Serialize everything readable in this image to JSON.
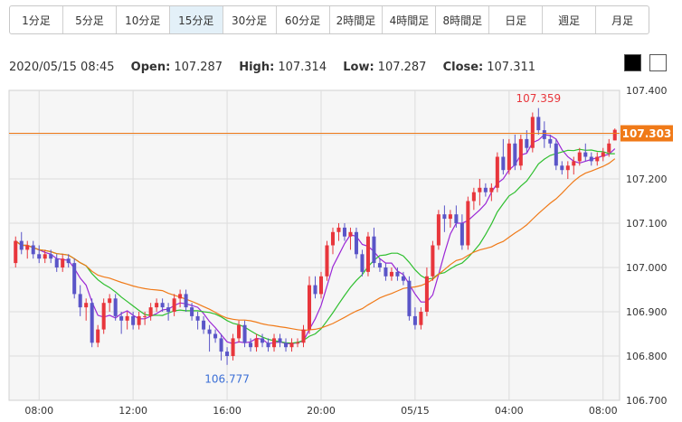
{
  "timeframes": [
    "1分足",
    "5分足",
    "10分足",
    "15分足",
    "30分足",
    "60分足",
    "2時間足",
    "4時間足",
    "8時間足",
    "日足",
    "週足",
    "月足"
  ],
  "active_timeframe": "15分足",
  "ohlc": {
    "datetime": "2020/05/15 08:45",
    "open_label": "Open:",
    "open": "107.287",
    "high_label": "High:",
    "high": "107.314",
    "low_label": "Low:",
    "low": "107.287",
    "close_label": "Close:",
    "close": "107.311"
  },
  "colors": {
    "up": "#e8363c",
    "down": "#5a55c8",
    "ma_short": "#9b27d6",
    "ma_mid": "#2fbf2f",
    "ma_long": "#f07a18",
    "current_price": "#f07a18",
    "high_marker": "#e8363c",
    "low_marker": "#3b6fd6"
  },
  "chart_data": {
    "type": "candlestick",
    "ylim": [
      106.7,
      107.4
    ],
    "y_ticks": [
      "107.400",
      "107.300",
      "107.200",
      "107.100",
      "107.000",
      "106.900",
      "106.800",
      "106.700"
    ],
    "x_ticks": [
      "08:00",
      "12:00",
      "16:00",
      "20:00",
      "05/15",
      "04:00",
      "08:00"
    ],
    "current_price": "107.303",
    "high_marker": "107.359",
    "low_marker": "106.777",
    "grid": true,
    "candles": [
      [
        107.01,
        107.07,
        107.0,
        107.06
      ],
      [
        107.06,
        107.08,
        107.03,
        107.04
      ],
      [
        107.04,
        107.06,
        107.02,
        107.05
      ],
      [
        107.05,
        107.06,
        107.02,
        107.03
      ],
      [
        107.03,
        107.05,
        107.01,
        107.02
      ],
      [
        107.02,
        107.04,
        107.01,
        107.03
      ],
      [
        107.03,
        107.04,
        107.01,
        107.02
      ],
      [
        107.02,
        107.03,
        106.99,
        107.0
      ],
      [
        107.0,
        107.03,
        106.99,
        107.02
      ],
      [
        107.02,
        107.03,
        107.0,
        107.01
      ],
      [
        107.01,
        107.02,
        106.93,
        106.94
      ],
      [
        106.94,
        106.96,
        106.89,
        106.91
      ],
      [
        106.91,
        106.93,
        106.88,
        106.92
      ],
      [
        106.92,
        106.93,
        106.82,
        106.83
      ],
      [
        106.83,
        106.87,
        106.82,
        106.86
      ],
      [
        106.86,
        106.93,
        106.85,
        106.92
      ],
      [
        106.92,
        106.94,
        106.9,
        106.93
      ],
      [
        106.93,
        106.94,
        106.88,
        106.89
      ],
      [
        106.89,
        106.9,
        106.85,
        106.88
      ],
      [
        106.88,
        106.9,
        106.86,
        106.89
      ],
      [
        106.89,
        106.9,
        106.86,
        106.87
      ],
      [
        106.87,
        106.9,
        106.86,
        106.89
      ],
      [
        106.89,
        106.9,
        106.87,
        106.89
      ],
      [
        106.89,
        106.92,
        106.88,
        106.91
      ],
      [
        106.91,
        106.93,
        106.9,
        106.92
      ],
      [
        106.92,
        106.93,
        106.9,
        106.91
      ],
      [
        106.91,
        106.92,
        106.88,
        106.9
      ],
      [
        106.9,
        106.94,
        106.89,
        106.93
      ],
      [
        106.93,
        106.95,
        106.91,
        106.94
      ],
      [
        106.94,
        106.95,
        106.9,
        106.91
      ],
      [
        106.91,
        106.92,
        106.88,
        106.89
      ],
      [
        106.89,
        106.9,
        106.86,
        106.88
      ],
      [
        106.88,
        106.89,
        106.85,
        106.86
      ],
      [
        106.86,
        106.87,
        106.81,
        106.85
      ],
      [
        106.85,
        106.86,
        106.83,
        106.84
      ],
      [
        106.84,
        106.85,
        106.79,
        106.81
      ],
      [
        106.81,
        106.82,
        106.78,
        106.8
      ],
      [
        106.8,
        106.85,
        106.79,
        106.84
      ],
      [
        106.84,
        106.88,
        106.83,
        106.87
      ],
      [
        106.87,
        106.88,
        106.82,
        106.83
      ],
      [
        106.83,
        106.84,
        106.81,
        106.82
      ],
      [
        106.82,
        106.85,
        106.81,
        106.84
      ],
      [
        106.84,
        106.85,
        106.82,
        106.83
      ],
      [
        106.83,
        106.84,
        106.81,
        106.82
      ],
      [
        106.82,
        106.85,
        106.81,
        106.84
      ],
      [
        106.84,
        106.85,
        106.82,
        106.83
      ],
      [
        106.83,
        106.84,
        106.81,
        106.82
      ],
      [
        106.82,
        106.84,
        106.81,
        106.83
      ],
      [
        106.83,
        106.84,
        106.82,
        106.83
      ],
      [
        106.83,
        106.87,
        106.82,
        106.86
      ],
      [
        106.86,
        106.98,
        106.85,
        106.96
      ],
      [
        106.96,
        106.98,
        106.93,
        106.94
      ],
      [
        106.94,
        106.99,
        106.93,
        106.98
      ],
      [
        106.98,
        107.06,
        106.97,
        107.05
      ],
      [
        107.05,
        107.09,
        107.03,
        107.08
      ],
      [
        107.08,
        107.1,
        107.06,
        107.09
      ],
      [
        107.09,
        107.1,
        107.06,
        107.07
      ],
      [
        107.07,
        107.09,
        107.04,
        107.08
      ],
      [
        107.08,
        107.09,
        107.02,
        107.03
      ],
      [
        107.03,
        107.04,
        106.98,
        106.99
      ],
      [
        106.99,
        107.08,
        106.98,
        107.07
      ],
      [
        107.07,
        107.09,
        107.0,
        107.01
      ],
      [
        107.01,
        107.02,
        106.99,
        107.0
      ],
      [
        107.0,
        107.01,
        106.97,
        106.98
      ],
      [
        106.98,
        107.0,
        106.97,
        106.99
      ],
      [
        106.99,
        107.0,
        106.97,
        106.98
      ],
      [
        106.98,
        106.99,
        106.96,
        106.97
      ],
      [
        106.97,
        106.98,
        106.88,
        106.89
      ],
      [
        106.89,
        106.91,
        106.86,
        106.87
      ],
      [
        106.87,
        106.91,
        106.86,
        106.9
      ],
      [
        106.9,
        107.0,
        106.89,
        106.98
      ],
      [
        106.98,
        107.06,
        106.97,
        107.05
      ],
      [
        107.05,
        107.13,
        107.04,
        107.12
      ],
      [
        107.12,
        107.14,
        107.08,
        107.11
      ],
      [
        107.11,
        107.13,
        107.09,
        107.12
      ],
      [
        107.12,
        107.14,
        107.09,
        107.1
      ],
      [
        107.1,
        107.12,
        107.04,
        107.05
      ],
      [
        107.05,
        107.16,
        107.04,
        107.15
      ],
      [
        107.15,
        107.18,
        107.13,
        107.17
      ],
      [
        107.17,
        107.2,
        107.14,
        107.18
      ],
      [
        107.18,
        107.19,
        107.16,
        107.17
      ],
      [
        107.17,
        107.19,
        107.15,
        107.18
      ],
      [
        107.18,
        107.26,
        107.17,
        107.25
      ],
      [
        107.25,
        107.29,
        107.21,
        107.22
      ],
      [
        107.22,
        107.29,
        107.21,
        107.28
      ],
      [
        107.28,
        107.3,
        107.22,
        107.23
      ],
      [
        107.23,
        107.3,
        107.22,
        107.29
      ],
      [
        107.29,
        107.31,
        107.26,
        107.27
      ],
      [
        107.27,
        107.35,
        107.26,
        107.34
      ],
      [
        107.34,
        107.36,
        107.3,
        107.31
      ],
      [
        107.31,
        107.33,
        107.27,
        107.29
      ],
      [
        107.29,
        107.3,
        107.27,
        107.28
      ],
      [
        107.28,
        107.29,
        107.22,
        107.23
      ],
      [
        107.23,
        107.24,
        107.21,
        107.22
      ],
      [
        107.22,
        107.24,
        107.2,
        107.23
      ],
      [
        107.23,
        107.25,
        107.21,
        107.24
      ],
      [
        107.24,
        107.27,
        107.23,
        107.26
      ],
      [
        107.26,
        107.28,
        107.24,
        107.25
      ],
      [
        107.25,
        107.26,
        107.23,
        107.24
      ],
      [
        107.24,
        107.26,
        107.23,
        107.25
      ],
      [
        107.25,
        107.27,
        107.24,
        107.26
      ],
      [
        107.26,
        107.29,
        107.25,
        107.28
      ],
      [
        107.287,
        107.314,
        107.287,
        107.311
      ]
    ]
  }
}
